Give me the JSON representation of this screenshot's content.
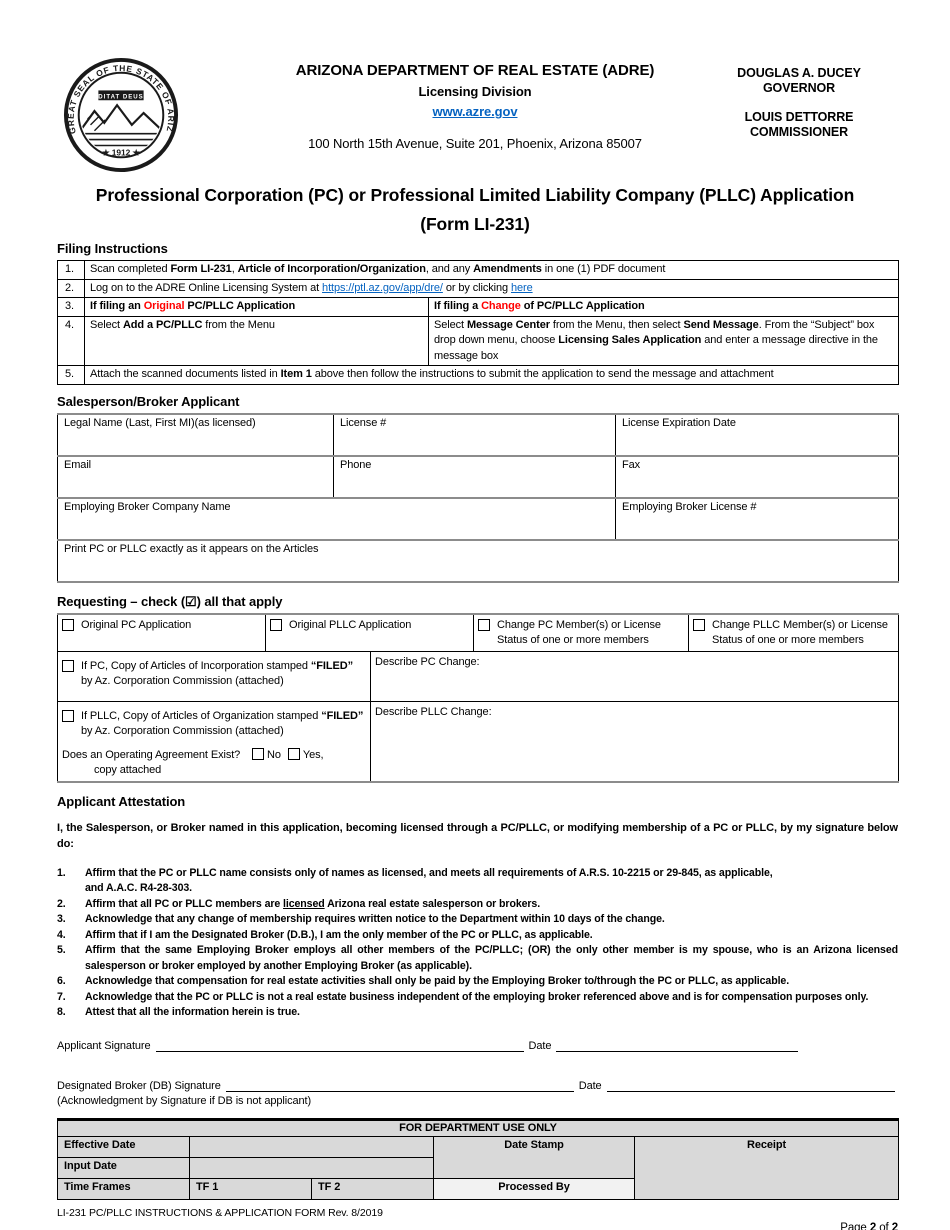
{
  "colors": {
    "link_blue": "#0563c1",
    "alert_red": "#ff0000",
    "shade_grey": "#d9d9d9"
  },
  "seal": {
    "ring_text": "GREAT SEAL OF THE STATE OF ARIZONA",
    "motto": "DITAT DEUS",
    "year": "★ 1912 ★"
  },
  "header": {
    "agency": "ARIZONA DEPARTMENT OF REAL ESTATE (ADRE)",
    "division": "Licensing Division",
    "website": "www.azre.gov",
    "address": "100 North 15th Avenue, Suite 201, Phoenix, Arizona 85007",
    "governor": "DOUGLAS A. DUCEY",
    "governor_title": "GOVERNOR",
    "commissioner": "LOUIS DETTORRE",
    "commissioner_title": "COMMISSIONER"
  },
  "title": {
    "line1": "Professional Corporation (PC) or Professional Limited Liability Company (PLLC) Application",
    "line2": "(Form LI-231)"
  },
  "filing": {
    "heading": "Filing Instructions",
    "row_numbers": [
      "1.",
      "2.",
      "3.",
      "4.",
      "5."
    ],
    "r1": [
      {
        "t": "Scan completed "
      },
      {
        "t": "Form LI-231",
        "b": true
      },
      {
        "t": ", "
      },
      {
        "t": "Article of Incorporation/Organization",
        "b": true
      },
      {
        "t": ", and any "
      },
      {
        "t": "Amendments",
        "b": true
      },
      {
        "t": " in one (1) PDF document"
      }
    ],
    "r2": [
      {
        "t": "Log on to the ADRE Online Licensing System at "
      },
      {
        "t": "https://ptl.az.gov/app/dre/",
        "link": true,
        "name": "adre-portal-link"
      },
      {
        "t": " or by clicking "
      },
      {
        "t": "here",
        "link": true,
        "name": "here-link"
      }
    ],
    "r3a": [
      {
        "t": "If filing an ",
        "b": true
      },
      {
        "t": "Original",
        "b": true,
        "red": true
      },
      {
        "t": " PC/PLLC Application",
        "b": true
      }
    ],
    "r3b": [
      {
        "t": "If filing a ",
        "b": true
      },
      {
        "t": "Change",
        "b": true,
        "red": true
      },
      {
        "t": " of PC/PLLC Application",
        "b": true
      }
    ],
    "r4a": [
      {
        "t": "Select "
      },
      {
        "t": "Add a PC/PLLC",
        "b": true
      },
      {
        "t": " from the Menu"
      }
    ],
    "r4b": [
      {
        "t": "Select "
      },
      {
        "t": "Message Center",
        "b": true
      },
      {
        "t": " from the Menu, then select "
      },
      {
        "t": "Send Message",
        "b": true
      },
      {
        "t": ". From the “Subject” box  drop down menu, choose "
      },
      {
        "t": "Licensing Sales Application",
        "b": true
      },
      {
        "t": " and enter a message directive in the message box"
      }
    ],
    "r5": [
      {
        "t": "Attach the scanned documents listed in "
      },
      {
        "t": "Item 1",
        "b": true
      },
      {
        "t": " above then follow the instructions to submit the application to send the message and attachment"
      }
    ]
  },
  "applicant": {
    "heading": "Salesperson/Broker Applicant",
    "legal_name": "Legal Name (Last, First MI)(as licensed)",
    "license": "License #",
    "license_exp": "License Expiration Date",
    "email": "Email",
    "phone": "Phone",
    "fax": "Fax",
    "broker_company": "Employing Broker Company Name",
    "broker_license": "Employing Broker License #",
    "print_pc": "Print PC or PLLC exactly as it appears on the Articles"
  },
  "requesting": {
    "heading": [
      {
        "t": "Requesting",
        "b": true
      },
      {
        "t": " – check (☑) all that apply"
      }
    ],
    "opt1": "Original PC Application",
    "opt2": "Original PLLC Application",
    "opt3": "Change PC Member(s) or License Status of one or more members",
    "opt4": "Change PLLC Member(s) or License Status of one or more members",
    "pc_articles": [
      {
        "t": "If PC, Copy of Articles of Incorporation stamped "
      },
      {
        "t": "“FILED”",
        "b": true
      },
      {
        "t": " by Az. Corporation Commission (attached)"
      }
    ],
    "describe_pc": "Describe PC  Change:",
    "pllc_articles": [
      {
        "t": "If PLLC, Copy of Articles of Organization stamped "
      },
      {
        "t": "“FILED”",
        "b": true
      },
      {
        "t": " by Az. Corporation Commission (attached)"
      }
    ],
    "describe_pllc": "Describe  PLLC  Change:",
    "operating_q": "Does an Operating Agreement Exist?",
    "no_label": "No",
    "yes_label": "Yes,",
    "yes_label2": "copy attached"
  },
  "attestation": {
    "heading": "Applicant Attestation",
    "intro": "I, the Salesperson, or Broker named in this application, becoming licensed through a PC/PLLC, or modifying membership of a PC or PLLC, by my signature below do:",
    "items": [
      {
        "num": "1.",
        "rich": [
          {
            "t": "Affirm that the PC or PLLC name consists only of names as licensed, and meets all requirements of A.R.S. 10-2215 or 29-845, as applicable,"
          },
          {
            "br": true
          },
          {
            "t": "and A.A.C. R4-28-303."
          }
        ]
      },
      {
        "num": "2.",
        "rich": [
          {
            "t": "Affirm that all PC or PLLC members are "
          },
          {
            "t": "licensed",
            "u": true
          },
          {
            "t": " Arizona real estate salesperson or brokers."
          }
        ]
      },
      {
        "num": "3.",
        "rich": [
          {
            "t": "Acknowledge that any change of membership requires written notice to the Department within 10 days of the change."
          }
        ]
      },
      {
        "num": "4.",
        "rich": [
          {
            "t": "Affirm that if I am the Designated Broker (D.B.), I am the only member of the PC or PLLC, as applicable."
          }
        ]
      },
      {
        "num": "5.",
        "rich": [
          {
            "t": "Affirm that the same Employing Broker employs all other members of the PC/PLLC; (OR) the only other member is my spouse, who is an Arizona licensed salesperson or broker employed by another Employing Broker (as applicable)."
          }
        ]
      },
      {
        "num": "6.",
        "rich": [
          {
            "t": "Acknowledge that compensation for real estate activities shall only be paid by the Employing Broker to/through the PC or PLLC, as applicable."
          }
        ]
      },
      {
        "num": "7.",
        "rich": [
          {
            "t": "Acknowledge that the PC or PLLC is not a real estate business independent of the employing broker referenced above and is for compensation purposes only."
          }
        ]
      },
      {
        "num": "8.",
        "rich": [
          {
            "t": "Attest that all the information herein is true."
          }
        ]
      }
    ]
  },
  "signatures": {
    "applicant_label": "Applicant Signature",
    "date_label": "Date",
    "db_label": "Designated Broker (DB) Signature",
    "db_date_label": "Date",
    "db_note": "(Acknowledgment by Signature if DB is not applicant)"
  },
  "department": {
    "header": "FOR DEPARTMENT USE ONLY",
    "effective_date": "Effective Date",
    "input_date": "Input Date",
    "time_frames": "Time Frames",
    "tf1": "TF 1",
    "tf2": "TF 2",
    "date_stamp": "Date Stamp",
    "processed_by": "Processed By",
    "receipt": "Receipt"
  },
  "footer": {
    "left": "LI-231 PC/PLLC INSTRUCTIONS & APPLICATION FORM Rev. 8/2019",
    "page": [
      {
        "t": "Page "
      },
      {
        "t": "2",
        "b": true
      },
      {
        "t": " of "
      },
      {
        "t": "2",
        "b": true
      }
    ]
  }
}
